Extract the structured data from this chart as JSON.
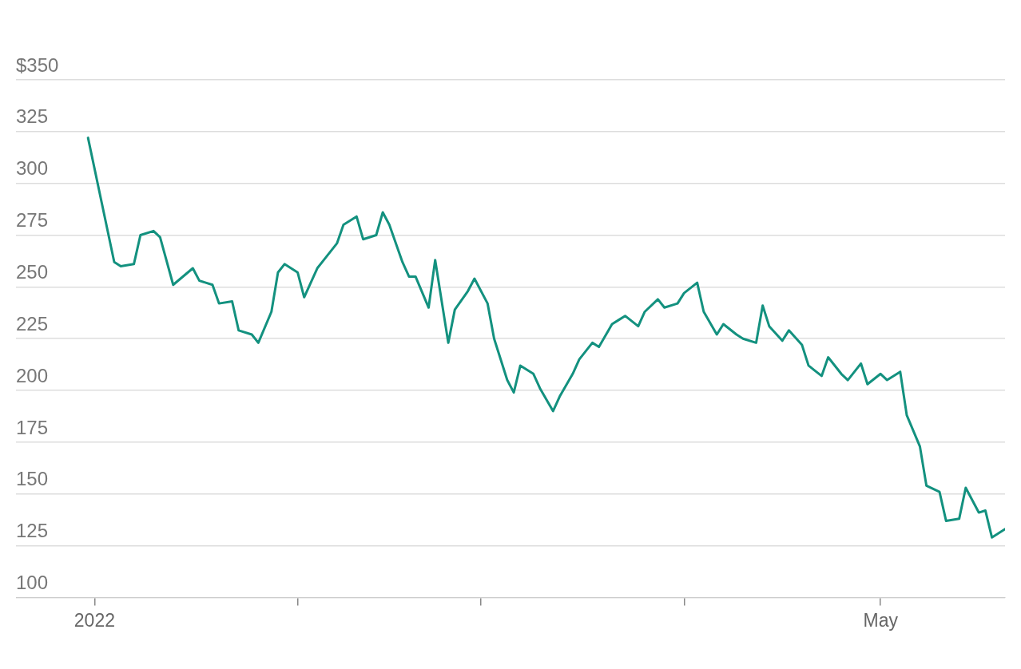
{
  "chart_data": {
    "type": "line",
    "x": [
      "2021-12-31",
      "2022-01-04",
      "2022-01-05",
      "2022-01-07",
      "2022-01-08",
      "2022-01-10",
      "2022-01-11",
      "2022-01-13",
      "2022-01-16",
      "2022-01-17",
      "2022-01-19",
      "2022-01-20",
      "2022-01-22",
      "2022-01-23",
      "2022-01-25",
      "2022-01-26",
      "2022-01-28",
      "2022-01-29",
      "2022-01-30",
      "2022-02-01",
      "2022-02-02",
      "2022-02-04",
      "2022-02-05",
      "2022-02-07",
      "2022-02-08",
      "2022-02-10",
      "2022-02-11",
      "2022-02-13",
      "2022-02-14",
      "2022-02-15",
      "2022-02-17",
      "2022-02-18",
      "2022-02-19",
      "2022-02-21",
      "2022-02-22",
      "2022-02-24",
      "2022-02-25",
      "2022-02-27",
      "2022-02-28",
      "2022-03-02",
      "2022-03-03",
      "2022-03-05",
      "2022-03-06",
      "2022-03-07",
      "2022-03-09",
      "2022-03-10",
      "2022-03-12",
      "2022-03-13",
      "2022-03-15",
      "2022-03-16",
      "2022-03-18",
      "2022-03-19",
      "2022-03-21",
      "2022-03-22",
      "2022-03-23",
      "2022-03-25",
      "2022-03-26",
      "2022-03-28",
      "2022-03-29",
      "2022-03-31",
      "2022-04-01",
      "2022-04-03",
      "2022-04-04",
      "2022-04-06",
      "2022-04-07",
      "2022-04-09",
      "2022-04-10",
      "2022-04-12",
      "2022-04-13",
      "2022-04-14",
      "2022-04-16",
      "2022-04-17",
      "2022-04-19",
      "2022-04-20",
      "2022-04-22",
      "2022-04-23",
      "2022-04-25",
      "2022-04-26",
      "2022-04-28",
      "2022-04-29",
      "2022-05-01",
      "2022-05-02",
      "2022-05-04",
      "2022-05-05",
      "2022-05-07",
      "2022-05-08",
      "2022-05-10",
      "2022-05-11",
      "2022-05-13",
      "2022-05-14",
      "2022-05-16",
      "2022-05-17",
      "2022-05-18",
      "2022-05-20"
    ],
    "series": [
      {
        "color": "#13917f",
        "values": [
          322,
          262,
          260,
          261,
          275,
          277,
          274,
          251,
          259,
          253,
          251,
          242,
          243,
          229,
          227,
          223,
          238,
          257,
          261,
          257,
          245,
          259,
          263,
          271,
          280,
          284,
          273,
          275,
          286,
          280,
          262,
          255,
          255,
          240,
          263,
          223,
          239,
          248,
          254,
          242,
          225,
          205,
          199,
          212,
          208,
          201,
          190,
          197,
          208,
          215,
          223,
          221,
          232,
          234,
          236,
          231,
          238,
          244,
          240,
          242,
          247,
          252,
          238,
          227,
          232,
          227,
          225,
          223,
          241,
          231,
          224,
          229,
          222,
          212,
          207,
          216,
          208,
          205,
          213,
          203,
          208,
          205,
          209,
          188,
          173,
          154,
          151,
          137,
          138,
          153,
          141,
          142,
          129,
          133
        ]
      }
    ],
    "xlim": [
      "2021-12-20",
      "2022-05-20"
    ],
    "xticks": [
      {
        "value": "2022-01-01",
        "label": "2022"
      },
      {
        "value": "2022-02-01",
        "label": null
      },
      {
        "value": "2022-03-01",
        "label": null
      },
      {
        "value": "2022-04-01",
        "label": null
      },
      {
        "value": "2022-05-01",
        "label": "May"
      }
    ],
    "ylim": [
      100,
      350
    ],
    "yticks": [
      100,
      125,
      150,
      175,
      200,
      225,
      250,
      275,
      300,
      325,
      {
        "value": 350,
        "label": "$350"
      }
    ],
    "grid": "y",
    "line_style": "solid"
  }
}
